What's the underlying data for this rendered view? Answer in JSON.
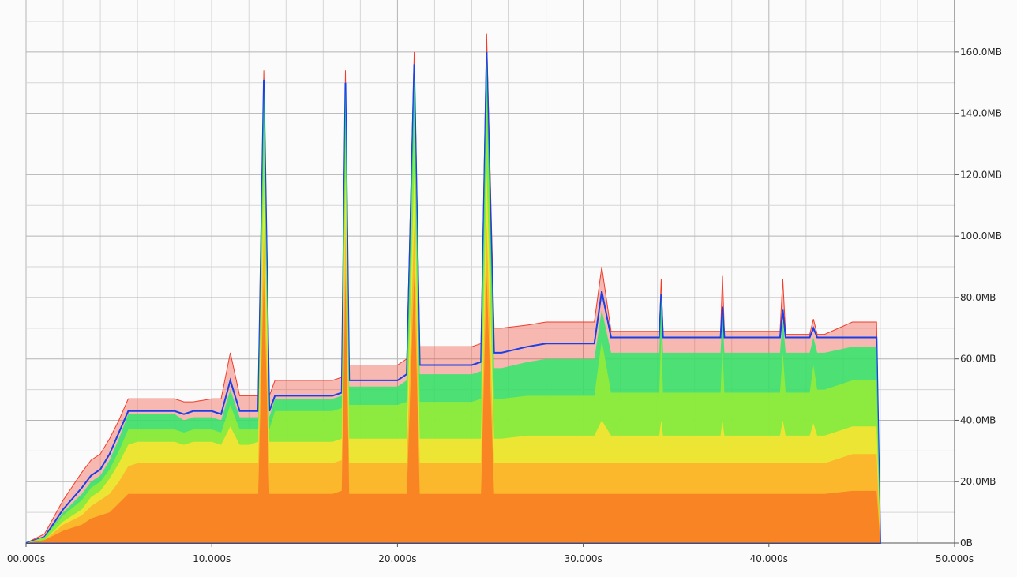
{
  "chart_data": {
    "type": "area",
    "title": "",
    "xlabel": "",
    "ylabel": "",
    "xlim": [
      0,
      50
    ],
    "ylim": [
      0,
      170
    ],
    "x_unit": "s",
    "y_unit": "MB",
    "x_ticks": [
      {
        "value": 0,
        "label": "00.000s"
      },
      {
        "value": 10,
        "label": "10.000s"
      },
      {
        "value": 20,
        "label": "20.000s"
      },
      {
        "value": 30,
        "label": "30.000s"
      },
      {
        "value": 40,
        "label": "40.000s"
      },
      {
        "value": 50,
        "label": "50.000s"
      }
    ],
    "y_ticks": [
      {
        "value": 0,
        "label": "0B"
      },
      {
        "value": 20,
        "label": "20.0MB"
      },
      {
        "value": 40,
        "label": "40.0MB"
      },
      {
        "value": 60,
        "label": "60.0MB"
      },
      {
        "value": 80,
        "label": "80.0MB"
      },
      {
        "value": 100,
        "label": "100.0MB"
      },
      {
        "value": 120,
        "label": "120.0MB"
      },
      {
        "value": 140,
        "label": "140.0MB"
      },
      {
        "value": 160,
        "label": "160.0MB"
      }
    ],
    "y_axis_side": "right",
    "grid": true,
    "x": [
      0,
      1,
      2,
      3,
      3.5,
      4,
      4.5,
      5,
      5.5,
      6,
      8,
      8.5,
      9,
      10,
      10.5,
      11,
      11.5,
      12,
      12.5,
      12.8,
      13.1,
      13.4,
      13.8,
      16.5,
      17,
      17.2,
      17.4,
      17.8,
      18.2,
      20,
      20.5,
      20.9,
      21.2,
      21.5,
      22,
      24,
      24.5,
      24.8,
      25.2,
      25.6,
      27,
      28,
      30,
      30.6,
      31,
      31.5,
      34.1,
      34.2,
      34.3,
      37.4,
      37.5,
      37.6,
      40.6,
      40.75,
      40.9,
      42.2,
      42.4,
      42.6,
      43,
      44.5,
      45.8,
      46
    ],
    "series": [
      {
        "name": "",
        "color": "#f77a22",
        "values": [
          0,
          1,
          4,
          6,
          8,
          9,
          10,
          13,
          16,
          16,
          16,
          16,
          16,
          16,
          16,
          16,
          16,
          16,
          16,
          87,
          16,
          16,
          16,
          16,
          17,
          87,
          16,
          16,
          16,
          16,
          16,
          87,
          16,
          16,
          16,
          16,
          16,
          87,
          16,
          16,
          16,
          16,
          16,
          16,
          16,
          16,
          16,
          16,
          16,
          16,
          16,
          16,
          16,
          16,
          16,
          16,
          16,
          16,
          16,
          17,
          17,
          0
        ]
      },
      {
        "name": "",
        "color": "#fdb02d",
        "values": [
          0,
          1,
          6,
          9,
          12,
          14,
          16,
          20,
          25,
          26,
          26,
          26,
          26,
          26,
          26,
          26,
          26,
          26,
          26,
          103,
          26,
          26,
          26,
          26,
          27,
          104,
          26,
          26,
          26,
          26,
          26,
          104,
          26,
          26,
          26,
          26,
          26,
          104,
          26,
          26,
          26,
          26,
          26,
          26,
          26,
          26,
          26,
          26,
          26,
          26,
          26,
          26,
          26,
          26,
          26,
          26,
          26,
          26,
          26,
          29,
          29,
          0
        ]
      },
      {
        "name": "",
        "color": "#fee433",
        "values": [
          0,
          1,
          7,
          11,
          15,
          17,
          21,
          26,
          32,
          33,
          33,
          32,
          33,
          33,
          32,
          38,
          32,
          32,
          33,
          118,
          33,
          33,
          33,
          33,
          34,
          120,
          34,
          34,
          34,
          34,
          34,
          121,
          34,
          34,
          34,
          34,
          34,
          121,
          34,
          34,
          35,
          35,
          35,
          35,
          40,
          35,
          35,
          40,
          35,
          35,
          40,
          35,
          35,
          40,
          35,
          35,
          39,
          35,
          35,
          38,
          38,
          0
        ]
      },
      {
        "name": "",
        "color": "#99ec36",
        "values": [
          0,
          2,
          9,
          14,
          18,
          20,
          24,
          30,
          37,
          37,
          37,
          36,
          37,
          37,
          36,
          45,
          37,
          37,
          37,
          136,
          37,
          43,
          43,
          43,
          44,
          137,
          45,
          45,
          45,
          45,
          46,
          140,
          46,
          46,
          46,
          46,
          47,
          146,
          47,
          47,
          48,
          48,
          48,
          48,
          66,
          49,
          49,
          68,
          49,
          49,
          64,
          49,
          49,
          62,
          49,
          49,
          58,
          50,
          50,
          53,
          53,
          0
        ]
      },
      {
        "name": "",
        "color": "#2ee66a",
        "values": [
          0,
          2,
          10,
          16,
          20,
          22,
          27,
          34,
          42,
          42,
          42,
          40,
          41,
          41,
          40,
          50,
          41,
          41,
          41,
          148,
          41,
          47,
          47,
          47,
          48,
          148,
          51,
          51,
          51,
          51,
          53,
          152,
          55,
          55,
          55,
          55,
          56,
          157,
          57,
          57,
          59,
          60,
          60,
          60,
          76,
          62,
          62,
          80,
          62,
          62,
          75,
          62,
          62,
          73,
          62,
          62,
          67,
          62,
          62,
          64,
          64,
          0
        ]
      },
      {
        "name": "",
        "color": "#1a3fe6",
        "values": [
          0,
          2,
          11,
          18,
          22,
          24,
          29,
          36,
          43,
          43,
          43,
          42,
          43,
          43,
          42,
          53,
          43,
          43,
          43,
          151,
          43,
          48,
          48,
          48,
          49,
          150,
          53,
          53,
          53,
          53,
          55,
          156,
          58,
          58,
          58,
          58,
          59,
          160,
          62,
          62,
          64,
          65,
          65,
          65,
          82,
          67,
          67,
          81,
          67,
          67,
          77,
          67,
          67,
          76,
          67,
          67,
          70,
          67,
          67,
          67,
          67,
          0
        ]
      },
      {
        "name": "",
        "color": "#f23b2b",
        "values": [
          0,
          3,
          14,
          23,
          27,
          29,
          34,
          40,
          47,
          47,
          47,
          46,
          46,
          47,
          47,
          62,
          48,
          48,
          48,
          154,
          48,
          53,
          53,
          53,
          54,
          154,
          58,
          58,
          58,
          58,
          60,
          160,
          64,
          64,
          64,
          64,
          65,
          166,
          70,
          70,
          71,
          72,
          72,
          72,
          90,
          69,
          69,
          86,
          69,
          69,
          87,
          69,
          69,
          86,
          68,
          68,
          73,
          68,
          68,
          72,
          72,
          0
        ]
      }
    ]
  }
}
